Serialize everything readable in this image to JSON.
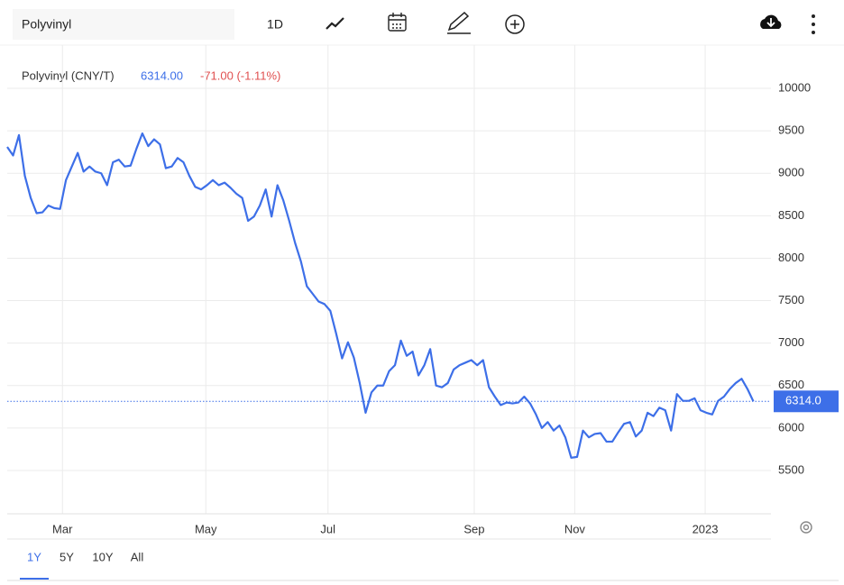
{
  "toolbar": {
    "search": "Polyvinyl",
    "interval": "1D"
  },
  "ranges": [
    "1Y",
    "5Y",
    "10Y",
    "All"
  ],
  "chart_data": {
    "type": "line",
    "title": "Polyvinyl (CNY/T)",
    "price": "6314.00",
    "change": "-71.00 (-1.11%)",
    "series": [
      {
        "name": "Polyvinyl",
        "color": "#3d6fe8",
        "values": [
          9310,
          9210,
          9450,
          8970,
          8710,
          8530,
          8540,
          8620,
          8590,
          8580,
          8920,
          9080,
          9240,
          9020,
          9080,
          9020,
          9000,
          8860,
          9130,
          9160,
          9080,
          9090,
          9290,
          9470,
          9320,
          9400,
          9340,
          9060,
          9080,
          9180,
          9130,
          8970,
          8840,
          8810,
          8860,
          8920,
          8860,
          8890,
          8830,
          8760,
          8710,
          8440,
          8490,
          8620,
          8810,
          8490,
          8860,
          8680,
          8440,
          8180,
          7960,
          7670,
          7580,
          7490,
          7460,
          7380,
          7110,
          6820,
          7010,
          6830,
          6530,
          6180,
          6420,
          6500,
          6500,
          6670,
          6740,
          7030,
          6850,
          6900,
          6620,
          6740,
          6930,
          6500,
          6480,
          6530,
          6690,
          6740,
          6770,
          6800,
          6740,
          6800,
          6480,
          6370,
          6270,
          6300,
          6290,
          6300,
          6370,
          6290,
          6160,
          6000,
          6070,
          5970,
          6030,
          5890,
          5650,
          5660,
          5970,
          5890,
          5930,
          5940,
          5840,
          5840,
          5950,
          6050,
          6070,
          5900,
          5970,
          6180,
          6140,
          6240,
          6210,
          5970,
          6400,
          6320,
          6320,
          6350,
          6210,
          6180,
          6160,
          6320,
          6370,
          6460,
          6530,
          6580,
          6460,
          6314
        ]
      }
    ],
    "last_price": {
      "value": 6314,
      "label": "6314.0"
    },
    "xlim": [
      0,
      130
    ],
    "xticks": [
      {
        "value": 9.4,
        "label": "Mar"
      },
      {
        "value": 33.8,
        "label": "May"
      },
      {
        "value": 54.6,
        "label": "Jul"
      },
      {
        "value": 79.5,
        "label": "Sep"
      },
      {
        "value": 96.6,
        "label": "Nov"
      },
      {
        "value": 118.8,
        "label": "2023"
      }
    ],
    "ylim": [
      4990,
      10510
    ],
    "yticks": [
      5500,
      6000,
      6500,
      7000,
      7500,
      8000,
      8500,
      9000,
      9500,
      10000
    ],
    "grid": true
  }
}
